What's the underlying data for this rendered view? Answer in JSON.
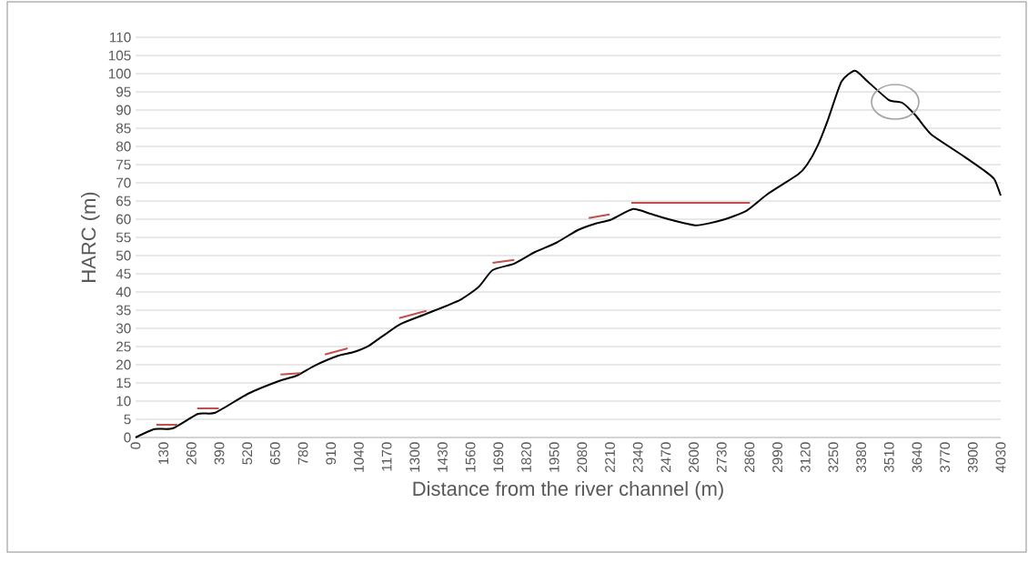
{
  "chart_data": {
    "type": "line",
    "xlabel": "Distance from the river channel (m)",
    "ylabel": "HARC (m)",
    "xlim": [
      0,
      4030
    ],
    "ylim": [
      0,
      110
    ],
    "xticks": [
      0,
      130,
      260,
      390,
      520,
      650,
      780,
      910,
      1040,
      1170,
      1300,
      1430,
      1560,
      1690,
      1820,
      1950,
      2080,
      2210,
      2340,
      2470,
      2600,
      2730,
      2860,
      2990,
      3120,
      3250,
      3380,
      3510,
      3640,
      3770,
      3900,
      4030
    ],
    "yticks": [
      0,
      5,
      10,
      15,
      20,
      25,
      30,
      35,
      40,
      45,
      50,
      55,
      60,
      65,
      70,
      75,
      80,
      85,
      90,
      95,
      100,
      105,
      110
    ],
    "grid": "y",
    "series": [
      {
        "color": "#000000",
        "x": [
          0,
          89,
          173,
          291,
          371,
          523,
          667,
          751,
          836,
          945,
          1017,
          1089,
          1228,
          1355,
          1511,
          1600,
          1663,
          1764,
          1861,
          1959,
          2060,
          2144,
          2212,
          2317,
          2398,
          2495,
          2613,
          2735,
          2845,
          2946,
          3086,
          3128,
          3178,
          3225,
          3288,
          3351,
          3411,
          3508,
          3571,
          3634,
          3706,
          3858,
          3950,
          4000,
          4030
        ],
        "values": [
          0,
          2.3,
          2.5,
          6.5,
          6.8,
          12,
          15.5,
          17,
          19.8,
          22.5,
          23.5,
          25.3,
          31,
          34,
          37.8,
          41.5,
          46,
          47.8,
          51,
          53.5,
          57,
          58.8,
          59.8,
          62.8,
          61.5,
          59.8,
          58.3,
          59.8,
          62.3,
          67,
          72.3,
          75,
          80.3,
          87.3,
          97.8,
          100.8,
          97.8,
          92.8,
          92,
          88.5,
          83.3,
          77.3,
          73.5,
          71,
          66.5
        ]
      },
      {
        "color": "#c0504d",
        "type": "line",
        "x": [
          97,
          194,
          240,
          287,
          388,
          530,
          675,
          768,
          825,
          882,
          988,
          1100,
          1228,
          1355,
          1510,
          1663,
          1764,
          1940,
          2111,
          2208,
          2260,
          2309,
          2862
        ],
        "values": [
          3.5,
          3.5,
          null,
          8,
          8,
          null,
          17.3,
          17.7,
          null,
          22.8,
          24.5,
          null,
          32.8,
          34.8,
          null,
          48,
          48.8,
          null,
          60.3,
          61.3,
          null,
          64.5,
          64.5
        ]
      }
    ]
  }
}
